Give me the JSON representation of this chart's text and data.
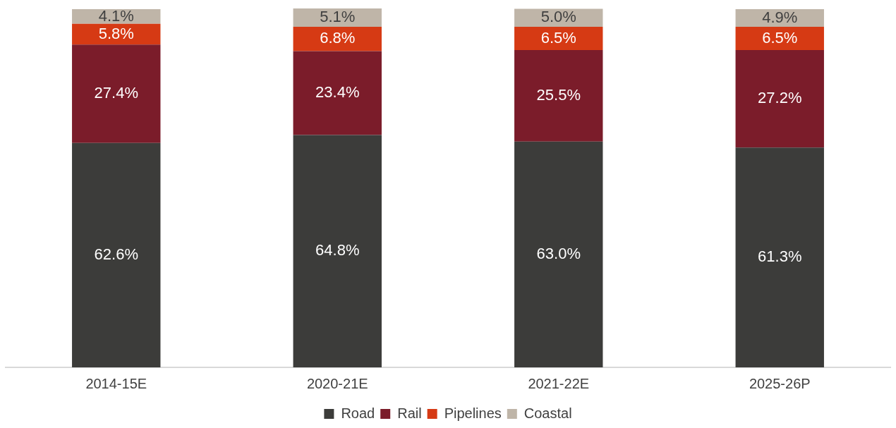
{
  "chart_data": {
    "type": "bar",
    "stacked": true,
    "categories": [
      "2014-15E",
      "2020-21E",
      "2021-22E",
      "2025-26P"
    ],
    "series": [
      {
        "name": "Road",
        "color": "#3c3c3a",
        "values": [
          62.6,
          64.8,
          63.0,
          61.3
        ],
        "value_labels": [
          "62.6%",
          "64.8%",
          "63.0%",
          "61.3%"
        ]
      },
      {
        "name": "Rail",
        "color": "#7b1c2a",
        "values": [
          27.4,
          23.4,
          25.5,
          27.2
        ],
        "value_labels": [
          "27.4%",
          "23.4%",
          "25.5%",
          "27.2%"
        ]
      },
      {
        "name": "Pipelines",
        "color": "#d63a14",
        "values": [
          5.8,
          6.8,
          6.5,
          6.5
        ],
        "value_labels": [
          "5.8%",
          "6.8%",
          "6.5%",
          "6.5%"
        ]
      },
      {
        "name": "Coastal",
        "color": "#bfb5a8",
        "values": [
          4.1,
          5.1,
          5.0,
          4.9
        ],
        "value_labels": [
          "4.1%",
          "5.1%",
          "5.0%",
          "4.9%"
        ]
      }
    ],
    "legend": "bottom",
    "grid": false
  }
}
